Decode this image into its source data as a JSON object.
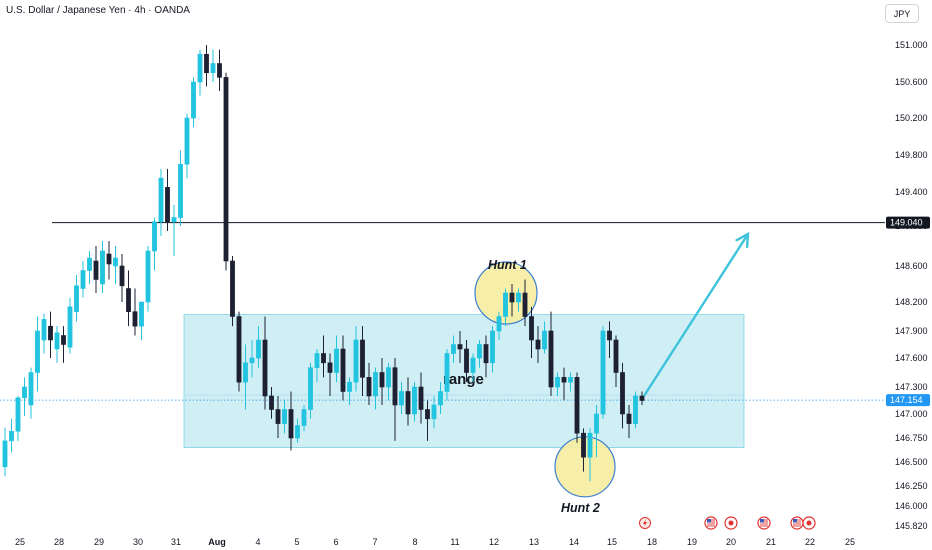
{
  "header": {
    "symbol": "U.S. Dollar / Japanese Yen · 4h · OANDA",
    "currency": "JPY"
  },
  "chart_data": {
    "type": "candlestick",
    "ylim": [
      145.8,
      151.1
    ],
    "y_ticks": [
      "151.000",
      "150.600",
      "150.200",
      "149.800",
      "149.400",
      "149.000",
      "148.600",
      "148.200",
      "147.900",
      "147.600",
      "147.300",
      "147.000",
      "146.750",
      "146.500",
      "146.250",
      "146.000",
      "145.820"
    ],
    "x_ticks": [
      "25",
      "28",
      "29",
      "30",
      "31",
      "Aug",
      "4",
      "5",
      "6",
      "7",
      "8",
      "11",
      "12",
      "13",
      "14",
      "15",
      "18",
      "19",
      "20",
      "21",
      "22",
      "25"
    ],
    "price_line": {
      "value": 149.04,
      "label": "149.040"
    },
    "current_price": {
      "value": 147.154,
      "label": "147.154"
    },
    "range_box": {
      "low": 146.65,
      "high": 148.07,
      "label": "range"
    },
    "annotations": [
      {
        "text": "Hunt 1",
        "price": 148.3
      },
      {
        "text": "Hunt 2",
        "price": 146.45
      }
    ],
    "projection_target": 148.92,
    "colors": {
      "up": "#22c4df",
      "down": "#1e2133",
      "range": "#bfeaf2",
      "hunt": "#f6eda0",
      "arrow": "#3fc3dc",
      "current": "#2196f3"
    },
    "candles": [
      [
        146.45,
        146.86,
        146.72,
        146.35
      ],
      [
        146.72,
        146.95,
        146.82,
        146.6
      ],
      [
        146.82,
        147.2,
        147.18,
        146.72
      ],
      [
        147.18,
        147.4,
        147.3,
        146.98
      ],
      [
        147.1,
        147.5,
        147.45,
        146.95
      ],
      [
        147.45,
        148.05,
        147.9,
        147.25
      ],
      [
        147.8,
        148.08,
        148.02,
        147.65
      ],
      [
        147.95,
        148.1,
        147.8,
        147.6
      ],
      [
        147.7,
        147.95,
        147.88,
        147.55
      ],
      [
        147.85,
        147.95,
        147.75,
        147.55
      ],
      [
        147.72,
        148.25,
        148.15,
        147.65
      ],
      [
        148.1,
        148.5,
        148.38,
        148.0
      ],
      [
        148.35,
        148.65,
        148.55,
        148.25
      ],
      [
        148.55,
        148.75,
        148.68,
        148.4
      ],
      [
        148.65,
        148.8,
        148.45,
        148.3
      ],
      [
        148.4,
        148.85,
        148.75,
        148.3
      ],
      [
        148.72,
        148.85,
        148.62,
        148.45
      ],
      [
        148.6,
        148.8,
        148.68,
        148.4
      ],
      [
        148.6,
        148.72,
        148.38,
        148.2
      ],
      [
        148.35,
        148.55,
        148.1,
        147.95
      ],
      [
        148.1,
        148.35,
        147.95,
        147.85
      ],
      [
        147.95,
        148.05,
        148.2,
        147.8
      ],
      [
        148.2,
        148.8,
        148.75,
        148.1
      ],
      [
        148.75,
        149.1,
        149.05,
        148.55
      ],
      [
        149.05,
        149.65,
        149.55,
        148.9
      ],
      [
        149.45,
        149.65,
        149.05,
        148.95
      ],
      [
        149.05,
        149.25,
        149.1,
        148.7
      ],
      [
        149.1,
        149.85,
        149.7,
        149.0
      ],
      [
        149.7,
        150.25,
        150.2,
        149.55
      ],
      [
        150.2,
        150.65,
        150.6,
        150.1
      ],
      [
        150.6,
        150.95,
        150.9,
        150.45
      ],
      [
        150.9,
        151.0,
        150.7,
        150.55
      ],
      [
        150.7,
        150.95,
        150.8,
        150.6
      ],
      [
        150.8,
        150.95,
        150.65,
        150.5
      ],
      [
        150.65,
        150.7,
        148.65,
        148.55
      ],
      [
        148.65,
        148.7,
        148.05,
        147.95
      ],
      [
        148.05,
        148.1,
        147.35,
        147.25
      ],
      [
        147.35,
        147.75,
        147.55,
        147.05
      ],
      [
        147.55,
        147.8,
        147.6,
        147.4
      ],
      [
        147.6,
        147.95,
        147.8,
        147.5
      ],
      [
        147.8,
        148.05,
        147.2,
        147.05
      ],
      [
        147.2,
        147.3,
        147.05,
        146.95
      ],
      [
        147.05,
        147.2,
        146.9,
        146.75
      ],
      [
        146.9,
        147.15,
        147.05,
        146.8
      ],
      [
        147.05,
        147.25,
        146.75,
        146.62
      ],
      [
        146.75,
        146.95,
        146.88,
        146.7
      ],
      [
        146.88,
        147.1,
        147.05,
        146.82
      ],
      [
        147.05,
        147.55,
        147.5,
        146.95
      ],
      [
        147.5,
        147.7,
        147.65,
        147.35
      ],
      [
        147.65,
        147.85,
        147.55,
        147.4
      ],
      [
        147.55,
        147.65,
        147.45,
        147.2
      ],
      [
        147.45,
        147.85,
        147.7,
        147.35
      ],
      [
        147.7,
        147.85,
        147.25,
        147.15
      ],
      [
        147.25,
        147.4,
        147.35,
        147.1
      ],
      [
        147.35,
        147.95,
        147.8,
        147.25
      ],
      [
        147.8,
        147.95,
        147.4,
        147.2
      ],
      [
        147.4,
        147.55,
        147.2,
        147.1
      ],
      [
        147.2,
        147.5,
        147.45,
        147.05
      ],
      [
        147.45,
        147.6,
        147.3,
        147.1
      ],
      [
        147.3,
        147.55,
        147.5,
        147.15
      ],
      [
        147.5,
        147.6,
        147.1,
        146.72
      ],
      [
        147.1,
        147.35,
        147.25,
        147.0
      ],
      [
        147.25,
        147.4,
        147.0,
        146.88
      ],
      [
        147.0,
        147.35,
        147.3,
        146.92
      ],
      [
        147.3,
        147.45,
        147.05,
        146.9
      ],
      [
        147.05,
        147.15,
        146.95,
        146.72
      ],
      [
        146.95,
        147.2,
        147.1,
        146.85
      ],
      [
        147.1,
        147.35,
        147.25,
        147.0
      ],
      [
        147.25,
        147.7,
        147.65,
        147.15
      ],
      [
        147.65,
        147.85,
        147.75,
        147.55
      ],
      [
        147.75,
        147.9,
        147.7,
        147.55
      ],
      [
        147.7,
        147.8,
        147.45,
        147.35
      ],
      [
        147.45,
        147.65,
        147.6,
        147.35
      ],
      [
        147.6,
        147.8,
        147.75,
        147.5
      ],
      [
        147.75,
        147.85,
        147.55,
        147.4
      ],
      [
        147.55,
        147.95,
        147.9,
        147.45
      ],
      [
        147.9,
        148.1,
        148.05,
        147.8
      ],
      [
        148.05,
        148.35,
        148.3,
        147.95
      ],
      [
        148.3,
        148.4,
        148.2,
        148.05
      ],
      [
        148.2,
        148.35,
        148.3,
        148.1
      ],
      [
        148.3,
        148.45,
        148.05,
        147.95
      ],
      [
        148.05,
        148.15,
        147.8,
        147.6
      ],
      [
        147.8,
        147.95,
        147.7,
        147.55
      ],
      [
        147.7,
        148.0,
        147.9,
        147.65
      ],
      [
        147.9,
        148.1,
        147.3,
        147.2
      ],
      [
        147.3,
        147.45,
        147.4,
        147.2
      ],
      [
        147.4,
        147.5,
        147.35,
        147.15
      ],
      [
        147.35,
        147.45,
        147.4,
        147.25
      ],
      [
        147.4,
        147.45,
        146.8,
        146.7
      ],
      [
        146.8,
        146.85,
        146.55,
        146.4
      ],
      [
        146.55,
        146.85,
        146.8,
        146.3
      ],
      [
        146.8,
        147.1,
        147.0,
        146.55
      ],
      [
        147.0,
        147.95,
        147.9,
        146.95
      ],
      [
        147.9,
        148.0,
        147.8,
        147.6
      ],
      [
        147.8,
        147.85,
        147.45,
        147.3
      ],
      [
        147.45,
        147.55,
        147.0,
        146.85
      ],
      [
        147.0,
        147.1,
        146.9,
        146.75
      ],
      [
        146.9,
        147.25,
        147.2,
        146.85
      ],
      [
        147.2,
        147.25,
        147.15,
        147.1
      ]
    ]
  }
}
